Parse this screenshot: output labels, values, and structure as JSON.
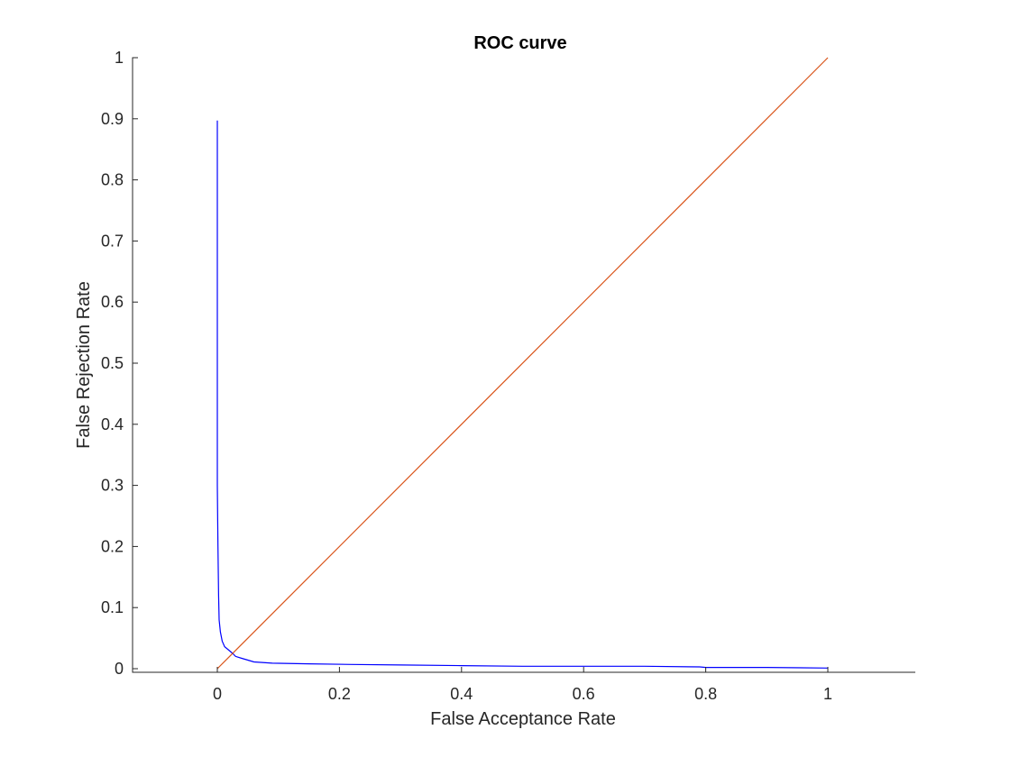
{
  "chart_data": {
    "type": "line",
    "title": "ROC curve",
    "xlabel": "False Acceptance Rate",
    "ylabel": "False Rejection Rate",
    "xlim": [
      -0.14,
      1.14
    ],
    "ylim": [
      -0.006,
      1
    ],
    "xticks": [
      0,
      0.2,
      0.4,
      0.6,
      0.8,
      1
    ],
    "xtick_labels": [
      "0",
      "0.2",
      "0.4",
      "0.6",
      "0.8",
      "1"
    ],
    "yticks": [
      0,
      0.1,
      0.2,
      0.3,
      0.4,
      0.5,
      0.6,
      0.7,
      0.8,
      0.9,
      1
    ],
    "ytick_labels": [
      "0",
      "0.1",
      "0.2",
      "0.3",
      "0.4",
      "0.5",
      "0.6",
      "0.7",
      "0.8",
      "0.9",
      "1"
    ],
    "grid": false,
    "series": [
      {
        "color": "#0000ff",
        "x": [
          0,
          0,
          0,
          0.001,
          0.002,
          0.003,
          0.005,
          0.008,
          0.012,
          0.018,
          0.025,
          0.03,
          0.04,
          0.05,
          0.06,
          0.09,
          0.15,
          0.22,
          0.3,
          0.4,
          0.5,
          0.6,
          0.7,
          0.79,
          0.8,
          0.9,
          1
        ],
        "y": [
          0.897,
          0.5,
          0.3,
          0.2,
          0.12,
          0.08,
          0.06,
          0.045,
          0.036,
          0.031,
          0.025,
          0.02,
          0.017,
          0.014,
          0.011,
          0.009,
          0.008,
          0.007,
          0.006,
          0.005,
          0.004,
          0.004,
          0.004,
          0.003,
          0.002,
          0.002,
          0.001
        ]
      },
      {
        "color": "#d95319",
        "x": [
          0,
          1
        ],
        "y": [
          0,
          1
        ]
      }
    ]
  }
}
